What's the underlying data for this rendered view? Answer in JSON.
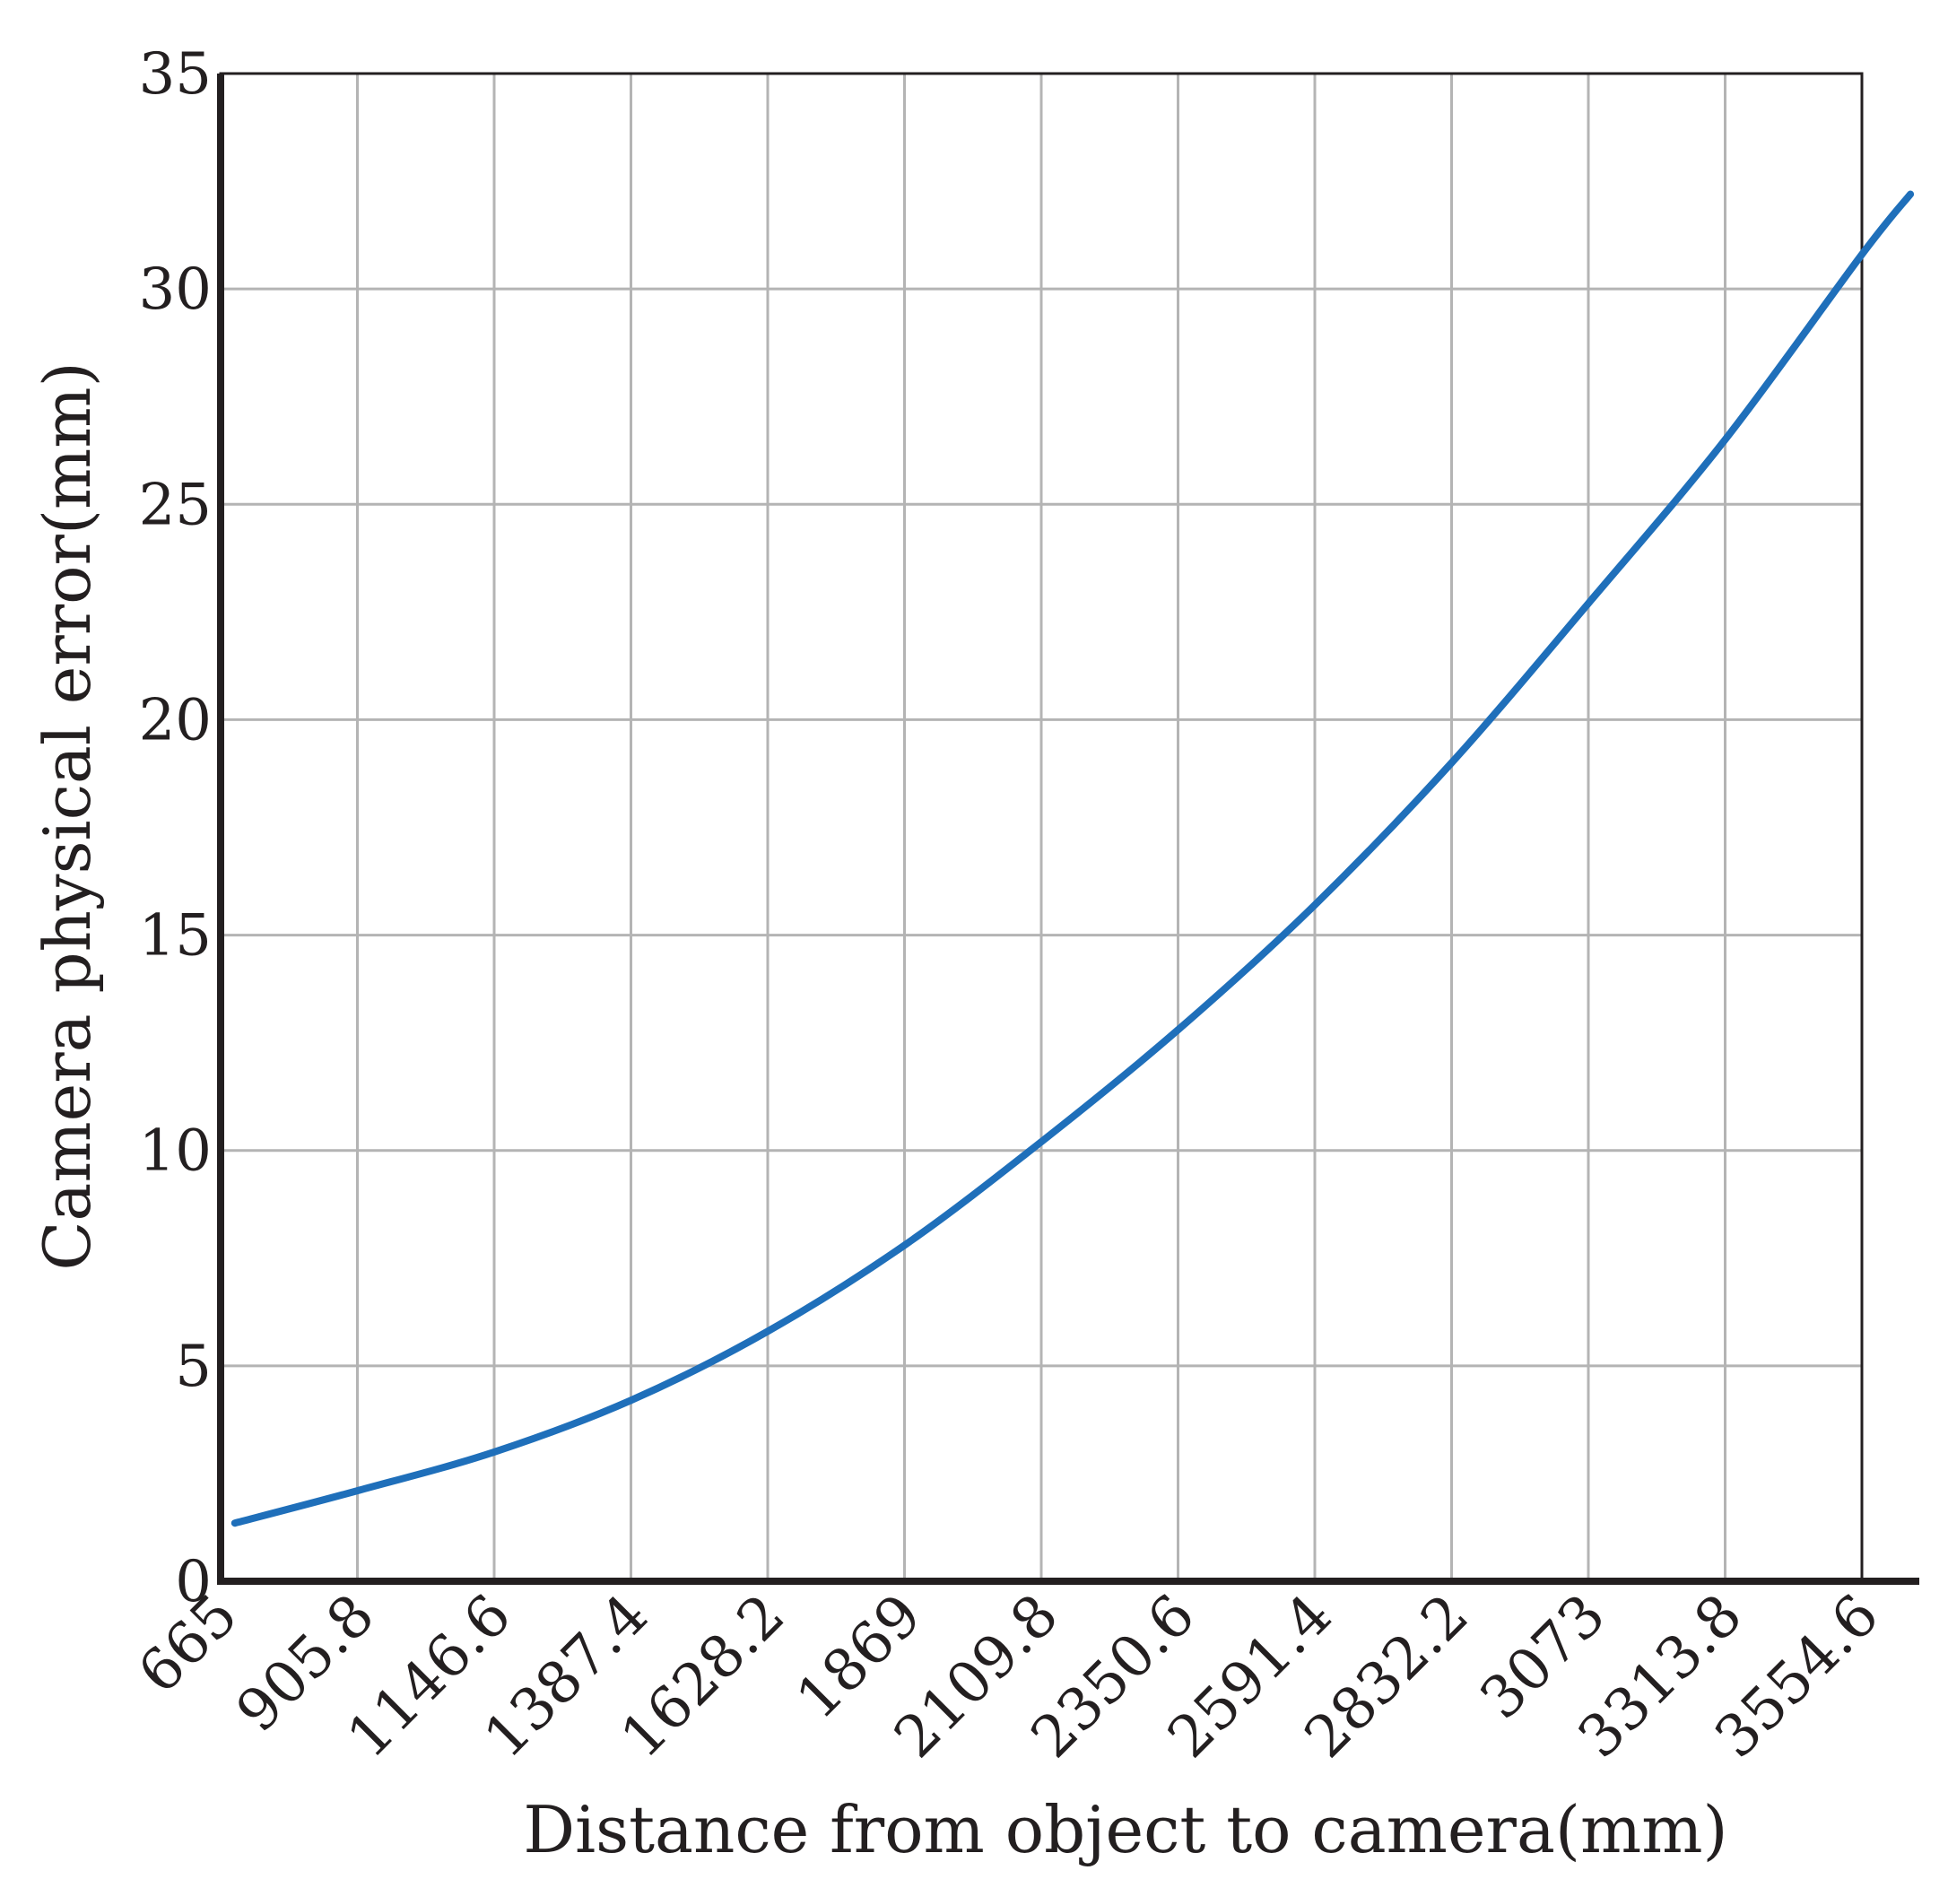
{
  "chart_data": {
    "type": "line",
    "title": "",
    "xlabel": "Distance from object to camera(mm)",
    "ylabel": "Camera physical error(mm)",
    "x_ticks": [
      "665",
      "905.8",
      "1146.6",
      "1387.4",
      "1628.2",
      "1869",
      "2109.8",
      "2350.6",
      "2591.4",
      "2832.2",
      "3073",
      "3313.8",
      "3554.6"
    ],
    "x_tick_values": [
      665,
      905.8,
      1146.6,
      1387.4,
      1628.2,
      1869,
      2109.8,
      2350.6,
      2591.4,
      2832.2,
      3073,
      3313.8,
      3554.6
    ],
    "y_ticks": [
      "0",
      "5",
      "10",
      "15",
      "20",
      "25",
      "30",
      "35"
    ],
    "y_tick_values": [
      0,
      5,
      10,
      15,
      20,
      25,
      30,
      35
    ],
    "xlim": [
      665,
      3640
    ],
    "ylim": [
      0,
      35
    ],
    "grid": true,
    "legend": "none",
    "series": [
      {
        "color": "#1f6fba",
        "x": [
          690,
          905.8,
          1146.6,
          1387.4,
          1628.2,
          1869,
          2109.8,
          2350.6,
          2591.4,
          2832.2,
          3073,
          3313.8,
          3554.6,
          3640
        ],
        "y": [
          1.35,
          2.1,
          3.0,
          4.2,
          5.8,
          7.8,
          10.2,
          12.8,
          15.7,
          19.0,
          22.7,
          26.5,
          30.8,
          32.2
        ]
      }
    ]
  }
}
